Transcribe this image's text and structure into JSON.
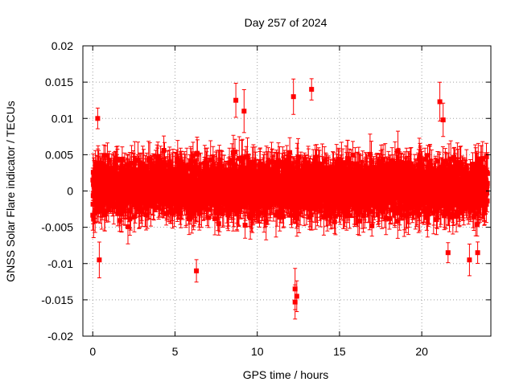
{
  "chart_data": {
    "type": "scatter",
    "title": "Day 257 of 2024",
    "xlabel": "GPS time / hours",
    "ylabel": "GNSS Solar Flare indicator / TECUs",
    "xlim": [
      -0.6,
      24.2
    ],
    "ylim": [
      -0.02,
      0.02
    ],
    "x_ticks": [
      0,
      5,
      10,
      15,
      20
    ],
    "x_tick_labels": [
      "0",
      "5",
      "10",
      "15",
      "20"
    ],
    "y_ticks": [
      0.02,
      0.015,
      0.01,
      0.005,
      0,
      -0.005,
      -0.01,
      -0.015,
      -0.02
    ],
    "y_tick_labels": [
      "0.02",
      "0.015",
      "0.01",
      "0.005",
      "0",
      "-0.005",
      "-0.01",
      "-0.015",
      "-0.02"
    ],
    "grid": true,
    "marker": "square",
    "error_bars": true,
    "colors": {
      "series": "#ff0000",
      "axis": "#000000",
      "grid": "#a0a0a0"
    },
    "series": [
      {
        "x_range": [
          0,
          24
        ],
        "sample_interval_hours": 0.00833,
        "y_typical_range": [
          -0.007,
          0.008
        ],
        "y_error_typical": 0.002,
        "notable_points": [
          {
            "x": 0.3,
            "y": 0.01
          },
          {
            "x": 0.4,
            "y": -0.0095
          },
          {
            "x": 6.3,
            "y": -0.011
          },
          {
            "x": 8.7,
            "y": 0.0125
          },
          {
            "x": 9.2,
            "y": 0.011
          },
          {
            "x": 12.2,
            "y": 0.013
          },
          {
            "x": 12.3,
            "y": -0.0135
          },
          {
            "x": 12.3,
            "y": -0.0153
          },
          {
            "x": 12.4,
            "y": -0.0145
          },
          {
            "x": 13.3,
            "y": 0.014
          },
          {
            "x": 21.1,
            "y": 0.0123
          },
          {
            "x": 21.3,
            "y": 0.0098
          },
          {
            "x": 21.6,
            "y": -0.0085
          },
          {
            "x": 22.9,
            "y": -0.0095
          },
          {
            "x": 23.4,
            "y": -0.0085
          }
        ]
      }
    ]
  }
}
